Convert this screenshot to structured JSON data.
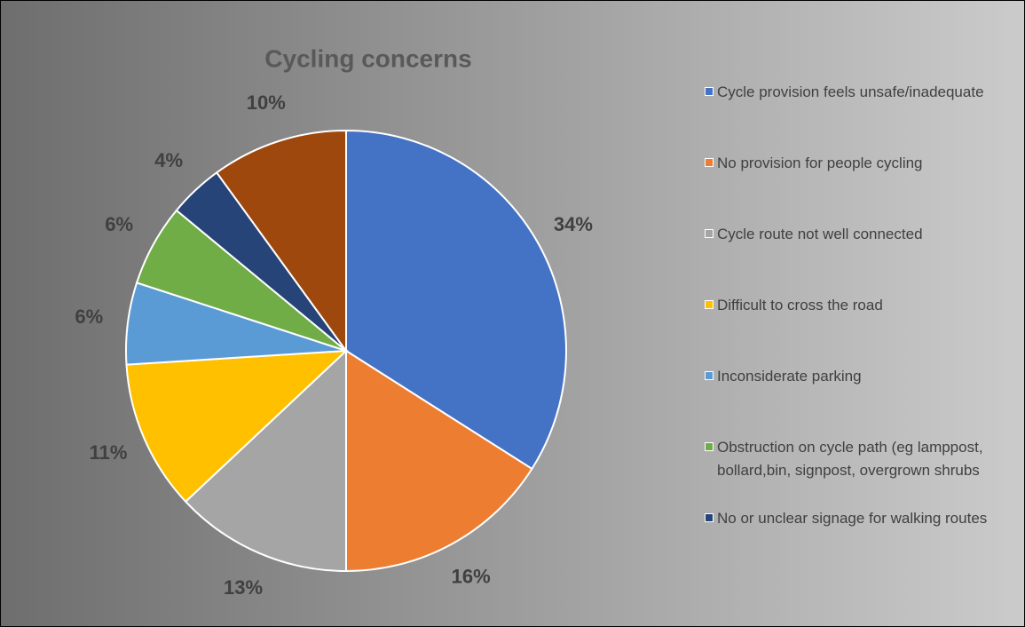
{
  "chart_data": {
    "type": "pie",
    "title": "Cycling concerns",
    "categories": [
      "Cycle provision feels unsafe/inadequate",
      "No provision for people cycling",
      "Cycle route not well connected",
      "Difficult to cross the road",
      "Inconsiderate parking",
      "Obstruction on cycle path (eg lamppost, bollard,bin, signpost, overgrown shrubs",
      "No or unclear signage for walking routes",
      null
    ],
    "values": [
      34,
      16,
      13,
      11,
      6,
      6,
      4,
      10
    ],
    "value_labels": [
      "34%",
      "16%",
      "13%",
      "11%",
      "6%",
      "6%",
      "4%",
      "10%"
    ],
    "colors": [
      "#4472c4",
      "#ed7d31",
      "#a5a5a5",
      "#ffc000",
      "#5b9bd5",
      "#70ad47",
      "#264478",
      "#9e480e"
    ],
    "legend": "right"
  }
}
